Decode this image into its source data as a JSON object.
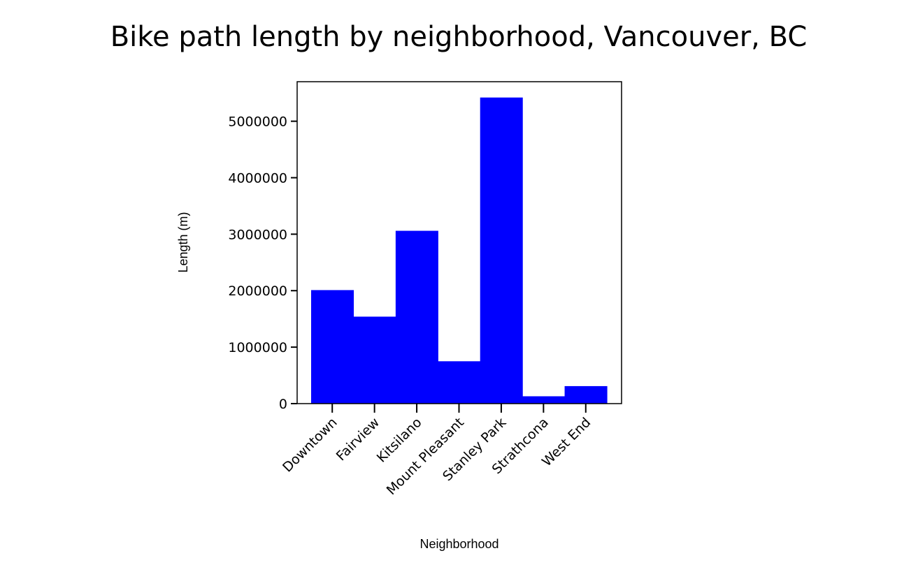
{
  "chart_data": {
    "type": "bar",
    "title": "Bike path length by neighborhood, Vancouver, BC",
    "xlabel": "Neighborhood",
    "ylabel": "Length (m)",
    "categories": [
      "Downtown",
      "Fairview",
      "Kitsilano",
      "Mount Pleasant",
      "Stanley Park",
      "Strathcona",
      "West End"
    ],
    "values": [
      2010000,
      1540000,
      3060000,
      750000,
      5420000,
      130000,
      310000
    ],
    "ylim": [
      0,
      5700000
    ],
    "yticks": [
      0,
      1000000,
      2000000,
      3000000,
      4000000,
      5000000
    ],
    "ytick_labels": [
      "0",
      "1000000",
      "2000000",
      "3000000",
      "4000000",
      "5000000"
    ],
    "bar_color": "#0000ff",
    "grid": false
  }
}
